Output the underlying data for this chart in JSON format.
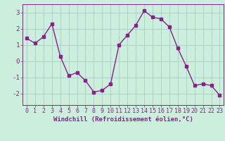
{
  "x": [
    0,
    1,
    2,
    3,
    4,
    5,
    6,
    7,
    8,
    9,
    10,
    11,
    12,
    13,
    14,
    15,
    16,
    17,
    18,
    19,
    20,
    21,
    22,
    23
  ],
  "y": [
    1.4,
    1.1,
    1.5,
    2.3,
    0.3,
    -0.9,
    -0.7,
    -1.2,
    -1.9,
    -1.8,
    -1.4,
    1.0,
    1.6,
    2.2,
    3.1,
    2.7,
    2.6,
    2.1,
    0.8,
    -0.3,
    -1.5,
    -1.4,
    -1.5,
    -2.1
  ],
  "line_color": "#882288",
  "marker": "s",
  "marker_size": 2.2,
  "bg_color": "#cceedd",
  "grid_color": "#aacccc",
  "xlabel": "Windchill (Refroidissement éolien,°C)",
  "xlabel_fontsize": 6.5,
  "ylim": [
    -2.7,
    3.5
  ],
  "yticks": [
    -2,
    -1,
    0,
    1,
    2,
    3
  ],
  "xticks": [
    0,
    1,
    2,
    3,
    4,
    5,
    6,
    7,
    8,
    9,
    10,
    11,
    12,
    13,
    14,
    15,
    16,
    17,
    18,
    19,
    20,
    21,
    22,
    23
  ],
  "tick_fontsize": 6.0,
  "line_width": 1.0,
  "text_color": "#882288"
}
